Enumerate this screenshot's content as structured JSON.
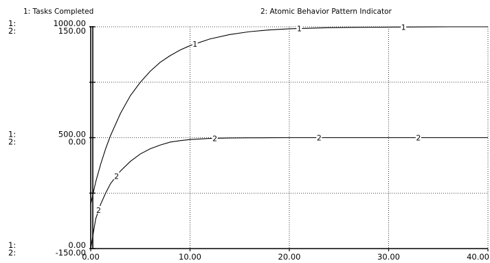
{
  "chart_data": {
    "type": "line",
    "legend": [
      {
        "id": "1",
        "text": "1: Tasks Completed"
      },
      {
        "id": "2",
        "text": "2: Atomic Behavior Pattern Indicator"
      }
    ],
    "xaxis": {
      "range": [
        0,
        40
      ],
      "ticks": [
        0,
        10,
        20,
        30,
        40
      ],
      "tick_labels": [
        "0.00",
        "10.00",
        "20.00",
        "30.00",
        "40.00"
      ],
      "label": ""
    },
    "yaxes": [
      {
        "series_id": "1",
        "range": [
          0,
          1000
        ],
        "tick_labels": [
          {
            "value": 1000,
            "text": "1000.00"
          },
          {
            "value": 500,
            "text": "500.00"
          },
          {
            "value": 0,
            "text": "0.00"
          }
        ]
      },
      {
        "series_id": "2",
        "range": [
          -150,
          150
        ],
        "tick_labels": [
          {
            "value": 150,
            "text": "150.00"
          },
          {
            "value": 0,
            "text": "0.00"
          },
          {
            "value": -150,
            "text": "-150.00"
          }
        ]
      }
    ],
    "axis_row_marks": {
      "top": [
        "1:",
        "2:"
      ],
      "middle": [
        "1:",
        "2:"
      ],
      "bottom": [
        "1:",
        "2:"
      ]
    },
    "grid": true,
    "series": [
      {
        "id": "1",
        "axis": 0,
        "marker": "1",
        "marker_x": [
          10.5,
          21,
          31.5
        ],
        "x": [
          0,
          0.5,
          1,
          1.5,
          2,
          3,
          4,
          5,
          6,
          7,
          8,
          9,
          10,
          12,
          14,
          16,
          18,
          20,
          24,
          28,
          32,
          36,
          40
        ],
        "y": [
          200,
          300,
          380,
          450,
          510,
          610,
          690,
          750,
          800,
          840,
          870,
          895,
          915,
          945,
          965,
          978,
          986,
          991,
          996,
          998,
          999,
          1000,
          1000
        ]
      },
      {
        "id": "2",
        "axis": 1,
        "marker": "2",
        "marker_x": [
          0.8,
          2.6,
          12.5,
          23,
          33
        ],
        "x": [
          0,
          0.5,
          1,
          1.5,
          2,
          3,
          4,
          5,
          6,
          7,
          8,
          9,
          10,
          12,
          14,
          16,
          18,
          20,
          24,
          28,
          32,
          36,
          40
        ],
        "y": [
          -150,
          -110,
          -90,
          -75,
          -62,
          -45,
          -32,
          -22,
          -15,
          -10,
          -6,
          -4,
          -2.5,
          -1,
          -0.4,
          -0.2,
          -0.1,
          0,
          0,
          0,
          0,
          0,
          0
        ]
      }
    ]
  }
}
